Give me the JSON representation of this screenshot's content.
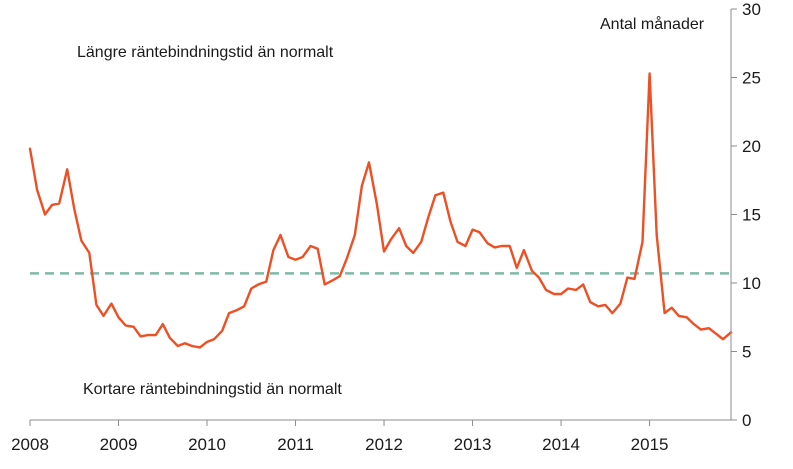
{
  "chart_data": {
    "type": "line",
    "title": "",
    "ylabel": "Antal månader",
    "xlabel": "",
    "ylim": [
      0,
      30
    ],
    "yticks": [
      0,
      5,
      10,
      15,
      20,
      25,
      30
    ],
    "x_range": [
      2008,
      2015.92
    ],
    "x_tick_labels": [
      "2008",
      "2009",
      "2010",
      "2011",
      "2012",
      "2013",
      "2014",
      "2015"
    ],
    "x_tick_values": [
      2008,
      2009,
      2010,
      2011,
      2012,
      2013,
      2014,
      2015
    ],
    "annotations": {
      "upper": "Längre räntebindningstid än normalt",
      "lower": "Kortare räntebindningstid än normalt"
    },
    "reference_line": {
      "value": 10.7,
      "color": "#7fb9a6",
      "style": "dashed"
    },
    "series": [
      {
        "color": "#f04e23",
        "x": [
          2008.0,
          2008.08,
          2008.17,
          2008.25,
          2008.33,
          2008.42,
          2008.5,
          2008.58,
          2008.67,
          2008.75,
          2008.83,
          2008.92,
          2009.0,
          2009.08,
          2009.17,
          2009.25,
          2009.33,
          2009.42,
          2009.5,
          2009.58,
          2009.67,
          2009.75,
          2009.83,
          2009.92,
          2010.0,
          2010.08,
          2010.17,
          2010.25,
          2010.33,
          2010.42,
          2010.5,
          2010.58,
          2010.67,
          2010.75,
          2010.83,
          2010.92,
          2011.0,
          2011.08,
          2011.17,
          2011.25,
          2011.33,
          2011.42,
          2011.5,
          2011.58,
          2011.67,
          2011.75,
          2011.83,
          2011.92,
          2012.0,
          2012.08,
          2012.17,
          2012.25,
          2012.33,
          2012.42,
          2012.5,
          2012.58,
          2012.67,
          2012.75,
          2012.83,
          2012.92,
          2013.0,
          2013.08,
          2013.17,
          2013.25,
          2013.33,
          2013.42,
          2013.5,
          2013.58,
          2013.67,
          2013.75,
          2013.83,
          2013.92,
          2014.0,
          2014.08,
          2014.17,
          2014.25,
          2014.33,
          2014.42,
          2014.5,
          2014.58,
          2014.67,
          2014.75,
          2014.83,
          2014.92,
          2015.0,
          2015.08,
          2015.17,
          2015.25,
          2015.33,
          2015.42,
          2015.5,
          2015.58,
          2015.67,
          2015.75,
          2015.83,
          2015.92
        ],
        "y": [
          19.8,
          16.8,
          15.0,
          15.7,
          15.8,
          18.3,
          15.4,
          13.1,
          12.2,
          8.4,
          7.6,
          8.5,
          7.5,
          6.9,
          6.8,
          6.1,
          6.2,
          6.2,
          7.0,
          6.0,
          5.4,
          5.6,
          5.4,
          5.3,
          5.7,
          5.9,
          6.5,
          7.8,
          8.0,
          8.3,
          9.6,
          9.9,
          10.1,
          12.4,
          13.5,
          11.9,
          11.7,
          11.9,
          12.7,
          12.5,
          9.9,
          10.2,
          10.5,
          11.8,
          13.5,
          17.1,
          18.8,
          15.7,
          12.3,
          13.2,
          14.0,
          12.7,
          12.2,
          13.0,
          14.8,
          16.4,
          16.6,
          14.5,
          13.0,
          12.7,
          13.9,
          13.7,
          12.9,
          12.6,
          12.7,
          12.7,
          11.1,
          12.4,
          10.9,
          10.4,
          9.5,
          9.2,
          9.2,
          9.6,
          9.5,
          9.9,
          8.6,
          8.3,
          8.4,
          7.8,
          8.5,
          10.4,
          10.3,
          13.0,
          25.3,
          13.5,
          7.8,
          8.2,
          7.6,
          7.5,
          7.0,
          6.6,
          6.7,
          6.3,
          5.9,
          6.4
        ]
      }
    ]
  }
}
